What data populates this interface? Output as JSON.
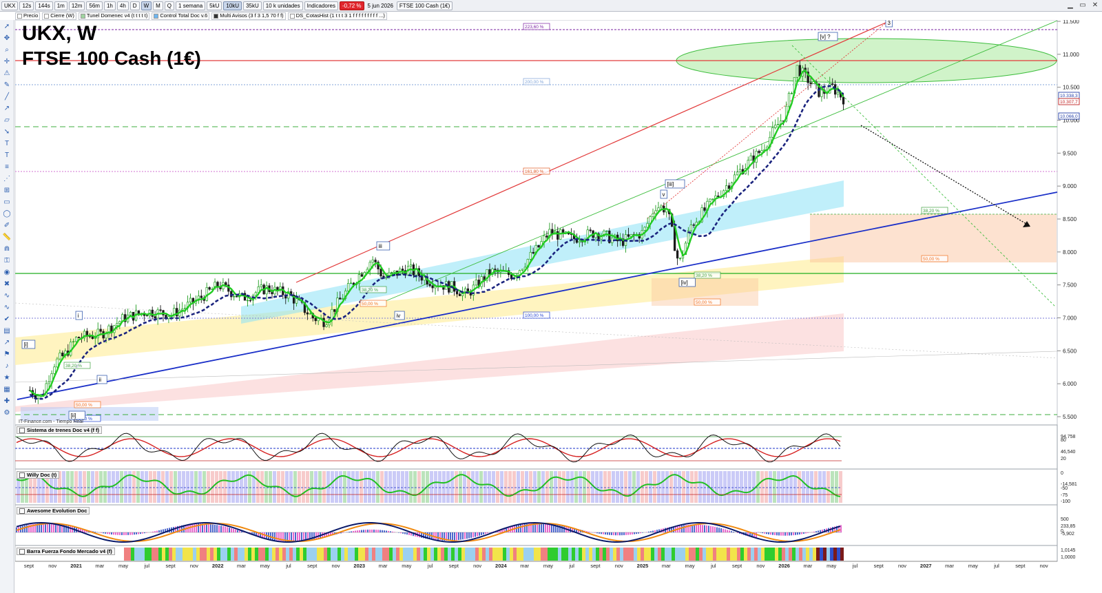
{
  "toolbar": {
    "symbol": "UKX",
    "timeframes": [
      "12s",
      "144s",
      "1m",
      "12m",
      "56m",
      "1h",
      "4h",
      "D",
      "W",
      "M",
      "Q"
    ],
    "active_timeframe": "W",
    "period": "1 semana",
    "units": [
      "5kU",
      "10kU",
      "35kU"
    ],
    "active_unit": "10kU",
    "units_select": "10 k unidades",
    "indicators_label": "Indicadores",
    "change_badge": "-0,72 %",
    "date": "5 jun 2026",
    "instrument": "FTSE 100 Cash (1€)"
  },
  "legend": [
    {
      "label": "Precio",
      "color": "#ffffff"
    },
    {
      "label": "Cierre (W)",
      "color": "#ffffff"
    },
    {
      "label": "Tunel Domenec v4 (t t t t t)",
      "color": "#9fd4a0"
    },
    {
      "label": "Control Total Doc v.6",
      "color": "#6fb6f0"
    },
    {
      "label": "Multi Avisos (3 f 3 1,5 70 f f)",
      "color": "#333333"
    },
    {
      "label": "DS_CotasHist (1 t t t 3 1 f f f f f f f f f ...)",
      "color": "#ffffff"
    }
  ],
  "title_line1": "UKX, W",
  "title_line2": "FTSE 100 Cash (1€)",
  "source": "IT-Finance.com - Tiempo Real",
  "panels": [
    {
      "title": "Sistema de trenes Doc v4 (f f)",
      "labels": [
        "94,758",
        "80",
        "46,540",
        "20"
      ]
    },
    {
      "title": "Willy Doc (t)",
      "labels": [
        "0",
        "-14,581",
        "-50",
        "-75",
        "-100"
      ]
    },
    {
      "title": "Awesome Evolution Doc",
      "labels": [
        "500",
        "233,85",
        "0",
        "-5,902"
      ]
    },
    {
      "title": "Barra Fuerza Fondo Mercado v4 (f)",
      "labels": [
        "1,0145",
        "1,0000"
      ]
    }
  ],
  "price_axis": [
    "11.500",
    "11.000",
    "10.500",
    "10.000",
    "9.500",
    "9.000",
    "8.500",
    "8.000",
    "7.500",
    "7.000",
    "6.500",
    "6.000",
    "5.500"
  ],
  "price_badges": [
    "10.338,3",
    "10.307,7",
    "10.066,0"
  ],
  "time_axis": [
    "sept",
    "nov",
    "2021",
    "mar",
    "may",
    "jul",
    "sept",
    "nov",
    "2022",
    "mar",
    "may",
    "jul",
    "sept",
    "nov",
    "2023",
    "mar",
    "may",
    "jul",
    "sept",
    "nov",
    "2024",
    "mar",
    "may",
    "jul",
    "sept",
    "nov",
    "2025",
    "mar",
    "may",
    "jul",
    "sept",
    "nov",
    "2026",
    "mar",
    "may",
    "jul",
    "sept",
    "nov",
    "2027",
    "mar",
    "may",
    "jul",
    "sept",
    "nov"
  ],
  "fib_labels": [
    {
      "text": "223,60 %",
      "color": "#7a1fa2"
    },
    {
      "text": "200,00 %",
      "color": "#7fa3d8"
    },
    {
      "text": "161,80 %",
      "color": "#e05a20"
    },
    {
      "text": "100,00 %",
      "color": "#1f3fd0"
    },
    {
      "text": "61,80 %",
      "color": "#1f3fd0"
    },
    {
      "text": "50,00 %",
      "color": "#f07020"
    },
    {
      "text": "38,20 %",
      "color": "#40a040"
    },
    {
      "text": "50,00 %",
      "color": "#f07020"
    },
    {
      "text": "38,20 %",
      "color": "#40a040"
    },
    {
      "text": "50,00 %",
      "color": "#f07020"
    },
    {
      "text": "38,20 %",
      "color": "#40a040"
    },
    {
      "text": "50,00 %",
      "color": "#f07020"
    },
    {
      "text": "38,20 %",
      "color": "#40a040"
    }
  ],
  "wave_labels": [
    "[i]",
    "i",
    "ii",
    "[ii]",
    "iii",
    "iv",
    "v",
    "[iii]",
    "[iv]",
    "[v] ?",
    "3"
  ],
  "colors": {
    "bull": "#1f9c1f",
    "bear": "#d02020",
    "trend_blue": "#1a2fc8",
    "fast_ma": "#22cc22",
    "slow_ma": "#1a237e"
  },
  "chart_data": {
    "type": "candlestick",
    "title": "UKX, W",
    "subtitle": "FTSE 100 Cash (1€)",
    "x_range": [
      "2020-08",
      "2027-11"
    ],
    "ylim": [
      5400,
      11700
    ],
    "series": [
      {
        "name": "Cierre (W)",
        "x": [
          "2020-09",
          "2020-10",
          "2020-11",
          "2020-12",
          "2021-01",
          "2021-03",
          "2021-05",
          "2021-07",
          "2021-09",
          "2021-11",
          "2022-01",
          "2022-03",
          "2022-05",
          "2022-07",
          "2022-09",
          "2022-10",
          "2022-12",
          "2023-02",
          "2023-03",
          "2023-05",
          "2023-07",
          "2023-09",
          "2023-10",
          "2023-12",
          "2024-02",
          "2024-04",
          "2024-05",
          "2024-07",
          "2024-09",
          "2024-11",
          "2025-01",
          "2025-02",
          "2025-03",
          "2025-04",
          "2025-05",
          "2025-07",
          "2025-09",
          "2025-11",
          "2026-01",
          "2026-02",
          "2026-03",
          "2026-04",
          "2026-05",
          "2026-06"
        ],
        "values": [
          5900,
          5800,
          6300,
          6450,
          6700,
          6750,
          7000,
          7100,
          7050,
          7250,
          7500,
          7300,
          7450,
          7350,
          7000,
          6950,
          7450,
          7900,
          7600,
          7750,
          7550,
          7450,
          7350,
          7700,
          7650,
          8050,
          8300,
          8200,
          8300,
          8150,
          8300,
          8700,
          8650,
          7800,
          8400,
          8800,
          9200,
          9550,
          10100,
          10800,
          10600,
          10400,
          10500,
          10320
        ]
      }
    ],
    "ytick_labels": [
      "11.500",
      "11.000",
      "10.500",
      "10.000",
      "9.500",
      "9.000",
      "8.500",
      "8.000",
      "7.500",
      "7.000",
      "6.500",
      "6.000",
      "5.500"
    ]
  }
}
